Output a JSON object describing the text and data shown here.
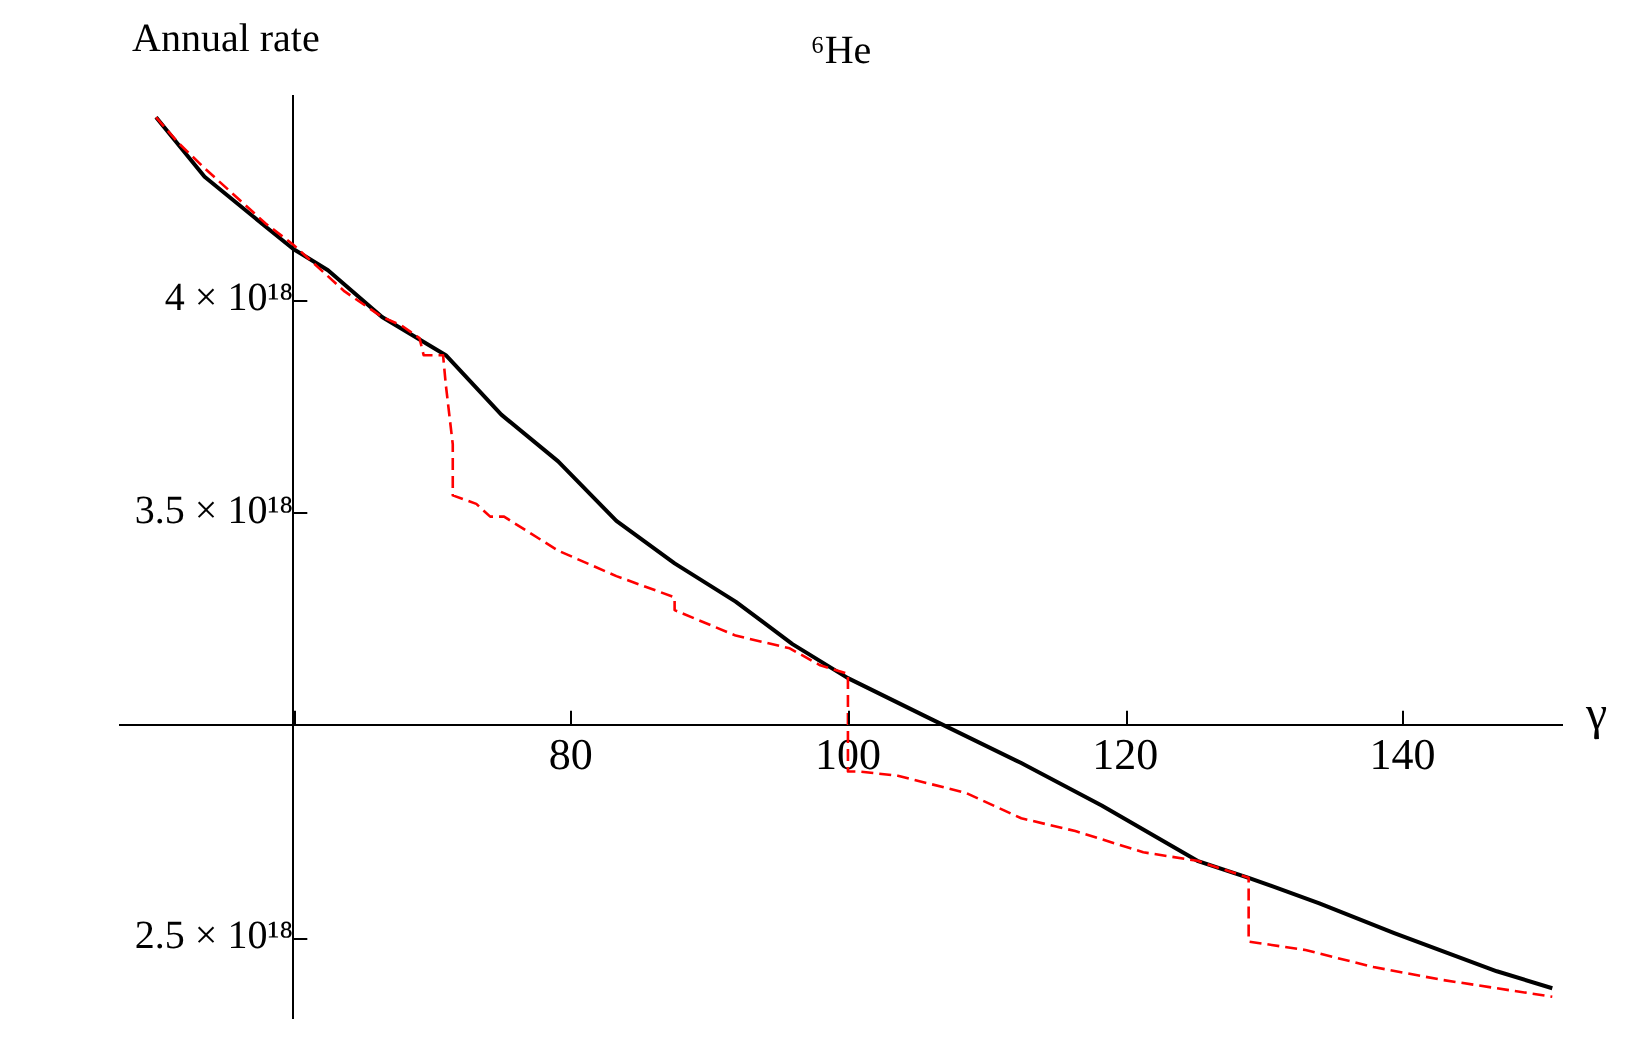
{
  "chart_data": {
    "type": "line",
    "title": "⁶He",
    "xlabel": "γ",
    "ylabel": "Annual rate",
    "xlim": [
      47.5,
      151.5
    ],
    "xticks": [
      {
        "value": 60,
        "label": null
      },
      80,
      100,
      120,
      140
    ],
    "ylim": [
      2.31e+18,
      4.48e+18
    ],
    "yticks": [
      {
        "value": 2.5e+18,
        "label": "2.5 × 10¹⁸"
      },
      {
        "value": 3e+18,
        "label": null
      },
      {
        "value": 3.5e+18,
        "label": "3.5 × 10¹⁸"
      },
      {
        "value": 4e+18,
        "label": "4 × 10¹⁸"
      }
    ],
    "grid": false,
    "legend": false,
    "marker": "none",
    "series": [
      {
        "color": "#000000",
        "line_style": "solid",
        "x": [
          50.1,
          53.6,
          58.1,
          60,
          62.5,
          66.4,
          71.0,
          75.0,
          79.1,
          83.3,
          87.5,
          91.9,
          96.0,
          100,
          105.6,
          112.5,
          118.3,
          125.2,
          128.9,
          134.0,
          139.4,
          146.8,
          150.8
        ],
        "values": [
          4.43e+18,
          4.29e+18,
          4.17e+18,
          4.12e+18,
          4.07e+18,
          3.96e+18,
          3.87e+18,
          3.73e+18,
          3.62e+18,
          3.48e+18,
          3.38e+18,
          3.29e+18,
          3.19e+18,
          3.11e+18,
          3.02e+18,
          2.91e+18,
          2.81e+18,
          2.68e+18,
          2.64e+18,
          2.58e+18,
          2.51e+18,
          2.42e+18,
          2.38e+18
        ]
      },
      {
        "color": "#ff0000",
        "line_style": "dashed",
        "x": [
          50.1,
          51.7,
          53.6,
          58.0,
          60,
          63.7,
          66.4,
          67.8,
          69.1,
          69.4,
          70.8,
          71.0,
          71.5,
          71.5,
          73.2,
          74.2,
          75.2,
          79.1,
          83.3,
          87.5,
          87.5,
          91.9,
          95.8,
          98.0,
          100,
          100,
          100.9,
          103.6,
          108.5,
          112.5,
          116.4,
          121.3,
          125.2,
          128.9,
          128.9,
          133.0,
          137.9,
          142.8,
          150.8
        ],
        "values": [
          4.43e+18,
          4.37e+18,
          4.31e+18,
          4.18e+18,
          4.13e+18,
          4.02e+18,
          3.96e+18,
          3.94e+18,
          3.91e+18,
          3.87e+18,
          3.87e+18,
          3.8e+18,
          3.66e+18,
          3.54e+18,
          3.52e+18,
          3.49e+18,
          3.49e+18,
          3.41e+18,
          3.35e+18,
          3.3e+18,
          3.27e+18,
          3.21e+18,
          3.18e+18,
          3.14e+18,
          3.12e+18,
          2.89e+18,
          2.89e+18,
          2.88e+18,
          2.84e+18,
          2.78e+18,
          2.75e+18,
          2.7e+18,
          2.68e+18,
          2.64e+18,
          2.49e+18,
          2.47e+18,
          2.43e+18,
          2.4e+18,
          2.36e+18
        ]
      }
    ]
  }
}
